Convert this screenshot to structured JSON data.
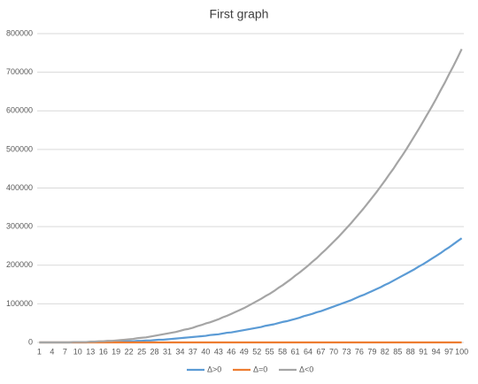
{
  "chart_data": {
    "type": "line",
    "title": "First graph",
    "categories": [
      "1",
      null,
      null,
      "4",
      null,
      null,
      "7",
      null,
      null,
      "10",
      null,
      null,
      "13",
      null,
      null,
      "16",
      null,
      null,
      "19",
      null,
      null,
      "22",
      null,
      null,
      "25",
      null,
      null,
      "28",
      null,
      null,
      "31",
      null,
      null,
      "34",
      null,
      null,
      "37",
      null,
      null,
      "40",
      null,
      null,
      "43",
      null,
      null,
      "46",
      null,
      null,
      "49",
      null,
      null,
      "52",
      null,
      null,
      "55",
      null,
      null,
      "58",
      null,
      null,
      "61",
      null,
      null,
      "64",
      null,
      null,
      "67",
      null,
      null,
      "70",
      null,
      null,
      "73",
      null,
      null,
      "76",
      null,
      null,
      "79",
      null,
      null,
      "82",
      null,
      null,
      "85",
      null,
      null,
      "88",
      null,
      null,
      "91",
      null,
      null,
      "94",
      null,
      null,
      "97",
      null,
      null,
      "100"
    ],
    "series": [
      {
        "name": "Δ>0",
        "color": "#5b9bd5",
        "values": [
          0,
          0,
          0,
          0,
          0,
          0,
          0,
          0,
          0,
          0,
          0,
          0,
          1000,
          1000,
          1000,
          1000,
          1000,
          2000,
          2000,
          2000,
          3000,
          3000,
          3000,
          4000,
          4000,
          5000,
          5000,
          6000,
          7000,
          7000,
          8000,
          9000,
          10000,
          11000,
          12000,
          13000,
          14000,
          15000,
          16000,
          17000,
          19000,
          20000,
          21000,
          23000,
          25000,
          26000,
          28000,
          30000,
          32000,
          34000,
          36000,
          38000,
          40000,
          43000,
          45000,
          47000,
          50000,
          53000,
          55000,
          58000,
          61000,
          64000,
          68000,
          71000,
          74000,
          78000,
          81000,
          85000,
          89000,
          93000,
          97000,
          101000,
          105000,
          109000,
          114000,
          119000,
          123000,
          128000,
          133000,
          138000,
          143000,
          149000,
          154000,
          160000,
          166000,
          172000,
          178000,
          184000,
          190000,
          197000,
          203000,
          210000,
          217000,
          224000,
          231000,
          239000,
          246000,
          254000,
          262000,
          270000
        ]
      },
      {
        "name": "Δ=0",
        "color": "#ed7d31",
        "values": [
          0,
          0,
          0,
          0,
          0,
          0,
          0,
          0,
          0,
          0,
          0,
          0,
          0,
          0,
          0,
          0,
          0,
          0,
          0,
          0,
          0,
          0,
          0,
          0,
          0,
          0,
          0,
          0,
          0,
          0,
          0,
          0,
          0,
          0,
          0,
          0,
          0,
          0,
          0,
          0,
          0,
          0,
          0,
          0,
          0,
          0,
          0,
          0,
          0,
          0,
          0,
          0,
          0,
          0,
          0,
          0,
          0,
          0,
          0,
          0,
          0,
          0,
          0,
          0,
          0,
          0,
          0,
          0,
          0,
          0,
          0,
          0,
          0,
          0,
          0,
          0,
          0,
          0,
          0,
          0,
          0,
          0,
          0,
          0,
          0,
          0,
          0,
          0,
          0,
          0,
          0,
          0,
          0,
          0,
          0,
          0,
          0,
          0,
          0,
          0
        ]
      },
      {
        "name": "Δ<0",
        "color": "#a5a5a5",
        "values": [
          0,
          0,
          0,
          0,
          0,
          0,
          0,
          0,
          1000,
          1000,
          1000,
          1000,
          2000,
          2000,
          3000,
          3000,
          4000,
          4000,
          5000,
          6000,
          7000,
          8000,
          9000,
          11000,
          12000,
          13000,
          15000,
          17000,
          19000,
          21000,
          23000,
          25000,
          27000,
          30000,
          33000,
          35000,
          38000,
          42000,
          45000,
          49000,
          52000,
          56000,
          60000,
          65000,
          69000,
          74000,
          79000,
          84000,
          89000,
          95000,
          101000,
          107000,
          113000,
          120000,
          126000,
          133000,
          141000,
          148000,
          156000,
          164000,
          173000,
          181000,
          190000,
          199000,
          209000,
          218000,
          229000,
          239000,
          250000,
          261000,
          272000,
          284000,
          296000,
          308000,
          321000,
          334000,
          347000,
          361000,
          375000,
          389000,
          404000,
          419000,
          435000,
          450000,
          467000,
          483000,
          500000,
          518000,
          536000,
          554000,
          573000,
          592000,
          611000,
          631000,
          652000,
          672000,
          694000,
          715000,
          737000,
          760000
        ]
      }
    ],
    "ylim": [
      0,
      800000
    ],
    "yticks": [
      0,
      100000,
      200000,
      300000,
      400000,
      500000,
      600000,
      700000,
      800000
    ],
    "grid": true,
    "legend": "bottom"
  }
}
